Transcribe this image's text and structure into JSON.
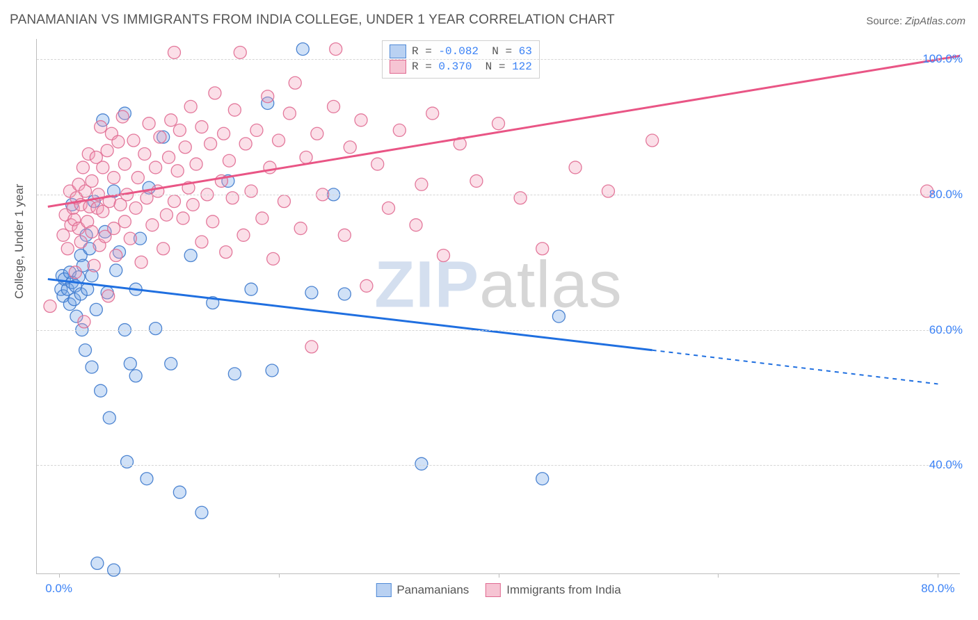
{
  "title": "PANAMANIAN VS IMMIGRANTS FROM INDIA COLLEGE, UNDER 1 YEAR CORRELATION CHART",
  "source_prefix": "Source: ",
  "source_name": "ZipAtlas.com",
  "yaxis_label": "College, Under 1 year",
  "watermark": {
    "zip": "ZIP",
    "atlas": "atlas",
    "color_zip": "rgba(120,155,205,0.32)",
    "color_atlas": "rgba(120,120,120,0.30)",
    "fontsize": 95
  },
  "chart": {
    "type": "scatter-correlation",
    "background_color": "#ffffff",
    "grid_color": "#d5d5d5",
    "axis_color": "#bdbdbd",
    "tick_label_color": "#3b82f6",
    "tick_fontsize": 17,
    "title_fontsize": 19,
    "x_range": [
      -2,
      82
    ],
    "y_range": [
      24,
      103
    ],
    "y_ticks": [
      40,
      60,
      80,
      100
    ],
    "y_tick_labels": [
      "40.0%",
      "60.0%",
      "80.0%",
      "100.0%"
    ],
    "x_tick_positions": [
      0,
      20,
      40,
      60,
      80
    ],
    "x_tick_labels": {
      "0": "0.0%",
      "80": "80.0%"
    },
    "marker_radius": 9,
    "marker_fill_opacity": 0.32,
    "marker_stroke_opacity": 0.9,
    "marker_stroke_width": 1.3,
    "trend_line_width": 3,
    "trend_dash": "6 6"
  },
  "legend_stats": {
    "rows": [
      {
        "color_fill": "#b9d1f2",
        "color_border": "#4f89d6",
        "R_label": "R =",
        "R": " -0.082",
        "N_label": "N =",
        "N": "  63"
      },
      {
        "color_fill": "#f6c4d3",
        "color_border": "#e06a91",
        "R_label": "R =",
        "R": "  0.370",
        "N_label": "N =",
        "N": " 122"
      }
    ]
  },
  "series_legend": [
    {
      "color_fill": "#b9d1f2",
      "color_border": "#4f89d6",
      "label": "Panamanians"
    },
    {
      "color_fill": "#f6c4d3",
      "color_border": "#e06a91",
      "label": "Immigrants from India"
    }
  ],
  "series": [
    {
      "name": "Panamanians",
      "color_fill": "#6ea3e6",
      "color_stroke": "#3b78cc",
      "trend_color": "#1f6fe0",
      "trend": {
        "x1": -1,
        "y1": 67.5,
        "x2": 54,
        "y2": 57.0,
        "x2_dash": 80,
        "y2_dash": 52.0
      },
      "points": [
        [
          0.2,
          66
        ],
        [
          0.3,
          68
        ],
        [
          0.4,
          65
        ],
        [
          0.5,
          67.5
        ],
        [
          0.8,
          66
        ],
        [
          1.0,
          63.8
        ],
        [
          1.0,
          68.5
        ],
        [
          1.2,
          67
        ],
        [
          1.2,
          78.5
        ],
        [
          1.4,
          64.5
        ],
        [
          1.5,
          66.5
        ],
        [
          1.6,
          62
        ],
        [
          1.8,
          67.8
        ],
        [
          2.0,
          65.3
        ],
        [
          2.0,
          71
        ],
        [
          2.1,
          60
        ],
        [
          2.2,
          69.5
        ],
        [
          2.4,
          57
        ],
        [
          2.5,
          74
        ],
        [
          2.6,
          66
        ],
        [
          2.8,
          72
        ],
        [
          3.0,
          54.5
        ],
        [
          3.0,
          68
        ],
        [
          3.2,
          79
        ],
        [
          3.4,
          63
        ],
        [
          3.5,
          25.5
        ],
        [
          3.8,
          51
        ],
        [
          4.0,
          91
        ],
        [
          4.2,
          74.5
        ],
        [
          4.4,
          65.5
        ],
        [
          4.6,
          47
        ],
        [
          5.0,
          80.5
        ],
        [
          5.0,
          24.5
        ],
        [
          5.2,
          68.8
        ],
        [
          5.5,
          71.5
        ],
        [
          6.0,
          60
        ],
        [
          6.0,
          92
        ],
        [
          6.2,
          40.5
        ],
        [
          6.5,
          55
        ],
        [
          7.0,
          53.2
        ],
        [
          7.0,
          66
        ],
        [
          7.4,
          73.5
        ],
        [
          8.0,
          38
        ],
        [
          8.2,
          81
        ],
        [
          8.8,
          60.2
        ],
        [
          9.5,
          88.5
        ],
        [
          10.2,
          55
        ],
        [
          11.0,
          36
        ],
        [
          12.0,
          71
        ],
        [
          13.0,
          33
        ],
        [
          14.0,
          64
        ],
        [
          15.4,
          82
        ],
        [
          16.0,
          53.5
        ],
        [
          17.5,
          66
        ],
        [
          19.0,
          93.5
        ],
        [
          19.4,
          54
        ],
        [
          22.2,
          101.5
        ],
        [
          23.0,
          65.5
        ],
        [
          25.0,
          80
        ],
        [
          26.0,
          65.3
        ],
        [
          33.0,
          40.2
        ],
        [
          44.0,
          38
        ],
        [
          45.5,
          62
        ]
      ]
    },
    {
      "name": "Immigrants from India",
      "color_fill": "#f29bb6",
      "color_stroke": "#e06a91",
      "trend_color": "#e95585",
      "trend": {
        "x1": -1,
        "y1": 78.2,
        "x2": 82,
        "y2": 100.5,
        "x2_dash": 82,
        "y2_dash": 100.5
      },
      "points": [
        [
          -0.8,
          63.5
        ],
        [
          0.4,
          74
        ],
        [
          0.6,
          77
        ],
        [
          0.8,
          72
        ],
        [
          1.0,
          80.5
        ],
        [
          1.1,
          75.5
        ],
        [
          1.3,
          78
        ],
        [
          1.4,
          76.3
        ],
        [
          1.5,
          68.5
        ],
        [
          1.6,
          79.5
        ],
        [
          1.8,
          75
        ],
        [
          1.8,
          81.5
        ],
        [
          2.0,
          73
        ],
        [
          2.0,
          78.5
        ],
        [
          2.2,
          84
        ],
        [
          2.3,
          61.2
        ],
        [
          2.4,
          80.5
        ],
        [
          2.6,
          76
        ],
        [
          2.7,
          86
        ],
        [
          2.8,
          78.2
        ],
        [
          3.0,
          74.5
        ],
        [
          3.0,
          82
        ],
        [
          3.2,
          69.5
        ],
        [
          3.4,
          85.5
        ],
        [
          3.5,
          78
        ],
        [
          3.6,
          80
        ],
        [
          3.7,
          72.5
        ],
        [
          3.8,
          90
        ],
        [
          4.0,
          77.5
        ],
        [
          4.0,
          84
        ],
        [
          4.2,
          73.8
        ],
        [
          4.4,
          86.5
        ],
        [
          4.5,
          65
        ],
        [
          4.6,
          79
        ],
        [
          4.8,
          89
        ],
        [
          5.0,
          75
        ],
        [
          5.0,
          82.5
        ],
        [
          5.2,
          71
        ],
        [
          5.4,
          87.8
        ],
        [
          5.6,
          78.5
        ],
        [
          5.8,
          91.5
        ],
        [
          6.0,
          76
        ],
        [
          6.0,
          84.5
        ],
        [
          6.2,
          80
        ],
        [
          6.5,
          73.5
        ],
        [
          6.8,
          88
        ],
        [
          7.0,
          78
        ],
        [
          7.2,
          82.5
        ],
        [
          7.5,
          70
        ],
        [
          7.8,
          86
        ],
        [
          8.0,
          79.5
        ],
        [
          8.2,
          90.5
        ],
        [
          8.5,
          75.5
        ],
        [
          8.8,
          84
        ],
        [
          9.0,
          80.5
        ],
        [
          9.2,
          88.5
        ],
        [
          9.5,
          72
        ],
        [
          9.8,
          77
        ],
        [
          10.0,
          85.5
        ],
        [
          10.2,
          91
        ],
        [
          10.5,
          79
        ],
        [
          10.5,
          101
        ],
        [
          10.8,
          83.5
        ],
        [
          11.0,
          89.5
        ],
        [
          11.3,
          76.5
        ],
        [
          11.5,
          87
        ],
        [
          11.8,
          81
        ],
        [
          12.0,
          93
        ],
        [
          12.2,
          78.5
        ],
        [
          12.5,
          84.5
        ],
        [
          13.0,
          73
        ],
        [
          13.0,
          90
        ],
        [
          13.5,
          80
        ],
        [
          13.8,
          87.5
        ],
        [
          14.0,
          76
        ],
        [
          14.2,
          95
        ],
        [
          14.8,
          82
        ],
        [
          15.0,
          89
        ],
        [
          15.2,
          71.5
        ],
        [
          15.5,
          85
        ],
        [
          15.8,
          79.5
        ],
        [
          16.0,
          92.5
        ],
        [
          16.5,
          101
        ],
        [
          16.8,
          74
        ],
        [
          17.0,
          87.5
        ],
        [
          17.5,
          80.5
        ],
        [
          18.0,
          89.5
        ],
        [
          18.5,
          76.5
        ],
        [
          19.0,
          94.5
        ],
        [
          19.2,
          84
        ],
        [
          19.5,
          70.5
        ],
        [
          20.0,
          88
        ],
        [
          20.5,
          79
        ],
        [
          21.0,
          92
        ],
        [
          21.5,
          96.5
        ],
        [
          22.0,
          75
        ],
        [
          22.5,
          85.5
        ],
        [
          23.0,
          57.5
        ],
        [
          23.5,
          89
        ],
        [
          24.0,
          80
        ],
        [
          25.0,
          93
        ],
        [
          25.2,
          101.5
        ],
        [
          26.0,
          74
        ],
        [
          26.5,
          87
        ],
        [
          27.5,
          91
        ],
        [
          28.0,
          66.5
        ],
        [
          29.0,
          84.5
        ],
        [
          30.0,
          78
        ],
        [
          31.0,
          89.5
        ],
        [
          32.5,
          75.5
        ],
        [
          33.0,
          81.5
        ],
        [
          34.0,
          92
        ],
        [
          35.0,
          71
        ],
        [
          36.5,
          87.5
        ],
        [
          38.0,
          82
        ],
        [
          40.0,
          90.5
        ],
        [
          42.0,
          79.5
        ],
        [
          44.0,
          72
        ],
        [
          47.0,
          84
        ],
        [
          50.0,
          80.5
        ],
        [
          54.0,
          88
        ],
        [
          79.0,
          80.5
        ]
      ]
    }
  ]
}
